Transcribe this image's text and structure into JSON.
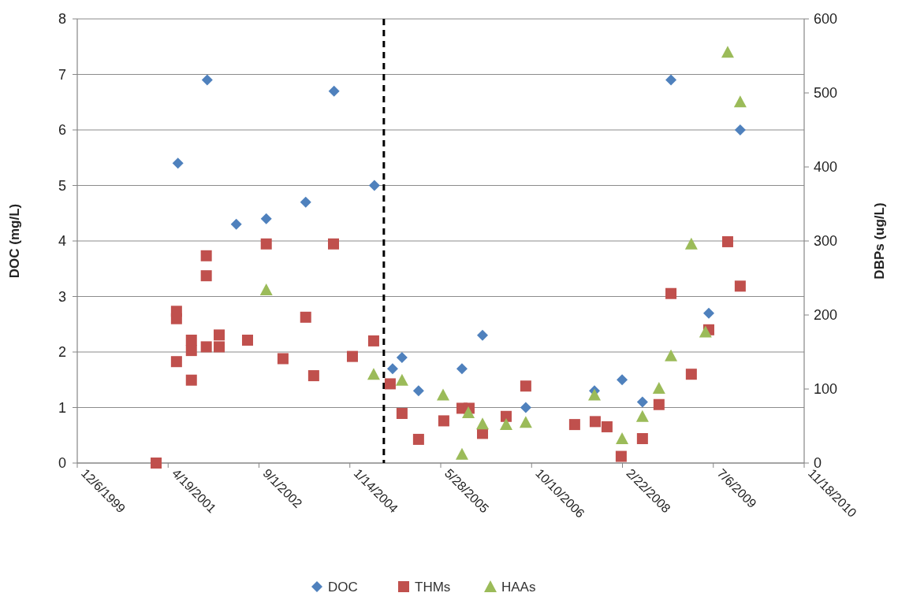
{
  "chart_data": {
    "type": "scatter",
    "ylabel": "DOC (mg/L)",
    "y2label": "DBPs (ug/L)",
    "xlim": [
      "1999-12-06",
      "2010-11-18"
    ],
    "xticks": [
      {
        "value": "1999-12-06",
        "label": "12/6/1999"
      },
      {
        "value": "2001-04-19",
        "label": "4/19/2001"
      },
      {
        "value": "2002-09-01",
        "label": "9/1/2002"
      },
      {
        "value": "2004-01-14",
        "label": "1/14/2004"
      },
      {
        "value": "2005-05-28",
        "label": "5/28/2005"
      },
      {
        "value": "2006-10-10",
        "label": "10/10/2006"
      },
      {
        "value": "2008-02-22",
        "label": "2/22/2008"
      },
      {
        "value": "2009-07-06",
        "label": "7/6/2009"
      },
      {
        "value": "2010-11-18",
        "label": "11/18/2010"
      }
    ],
    "ylim": [
      0,
      8
    ],
    "yticks": [
      0,
      1,
      2,
      3,
      4,
      5,
      6,
      7,
      8
    ],
    "y2lim": [
      0,
      600
    ],
    "y2ticks": [
      0,
      100,
      200,
      300,
      400,
      500,
      600
    ],
    "grid": "y",
    "legend": "bottom",
    "ref_lines": [
      {
        "axis": "x",
        "value": "2004-07-19",
        "color": "#000000",
        "line_style": "dashed"
      }
    ],
    "series": [
      {
        "name": "DOC",
        "color": "#4f81bd",
        "marker": "diamond",
        "x": [
          "2001-06-12",
          "2001-11-20",
          "2002-04-29",
          "2002-10-11",
          "2003-05-16",
          "2003-10-19",
          "2004-05-28",
          "2004-09-05",
          "2004-10-27",
          "2005-01-26",
          "2005-09-22",
          "2006-01-13",
          "2006-09-08",
          "2007-09-21",
          "2008-02-20",
          "2008-06-11",
          "2008-11-15",
          "2009-06-11",
          "2009-12-01"
        ],
        "values": [
          5.4,
          6.9,
          4.3,
          4.4,
          4.7,
          6.7,
          5.0,
          1.7,
          1.9,
          1.3,
          1.7,
          2.3,
          1.0,
          1.3,
          1.5,
          1.1,
          6.9,
          2.7,
          6.0
        ]
      },
      {
        "name": "THMs",
        "color": "#c0504d",
        "marker": "square",
        "axis": "y2",
        "x": [
          "2001-02-12",
          "2001-06-04",
          "2001-06-04",
          "2001-06-04",
          "2001-08-25",
          "2001-08-25",
          "2001-08-25",
          "2001-11-15",
          "2001-11-15",
          "2001-11-15",
          "2002-01-25",
          "2002-01-25",
          "2002-06-30",
          "2002-10-11",
          "2003-01-11",
          "2003-05-16",
          "2003-06-29",
          "2003-10-16",
          "2004-01-28",
          "2004-05-24",
          "2004-08-23",
          "2004-10-27",
          "2005-01-26",
          "2005-06-14",
          "2005-09-22",
          "2005-10-31",
          "2006-01-13",
          "2006-05-23",
          "2006-09-08",
          "2007-06-04",
          "2007-09-25",
          "2007-11-29",
          "2008-02-15",
          "2008-06-11",
          "2008-09-10",
          "2008-11-15",
          "2009-03-07",
          "2009-06-11",
          "2009-09-23",
          "2009-12-01"
        ],
        "values": [
          0,
          205,
          195,
          137,
          166,
          152,
          112,
          280,
          253,
          157,
          173,
          157,
          166,
          296,
          141,
          197,
          118,
          296,
          144,
          165,
          107,
          67,
          32,
          57,
          74,
          74,
          40,
          63,
          104,
          52,
          56,
          49,
          9,
          33,
          79,
          229,
          120,
          180,
          299,
          239
        ]
      },
      {
        "name": "HAAs",
        "color": "#9bbb59",
        "marker": "triangle",
        "axis": "y2",
        "x": [
          "2002-10-11",
          "2004-05-24",
          "2004-10-27",
          "2005-06-10",
          "2005-09-22",
          "2005-10-27",
          "2006-01-13",
          "2006-05-23",
          "2006-09-08",
          "2007-09-21",
          "2008-02-20",
          "2008-06-11",
          "2008-09-10",
          "2008-11-15",
          "2009-03-07",
          "2009-05-24",
          "2009-09-23",
          "2009-12-01"
        ],
        "values": [
          234,
          120,
          112,
          92,
          12,
          68,
          53,
          52,
          55,
          92,
          33,
          63,
          101,
          145,
          296,
          177,
          555,
          488
        ]
      }
    ]
  }
}
